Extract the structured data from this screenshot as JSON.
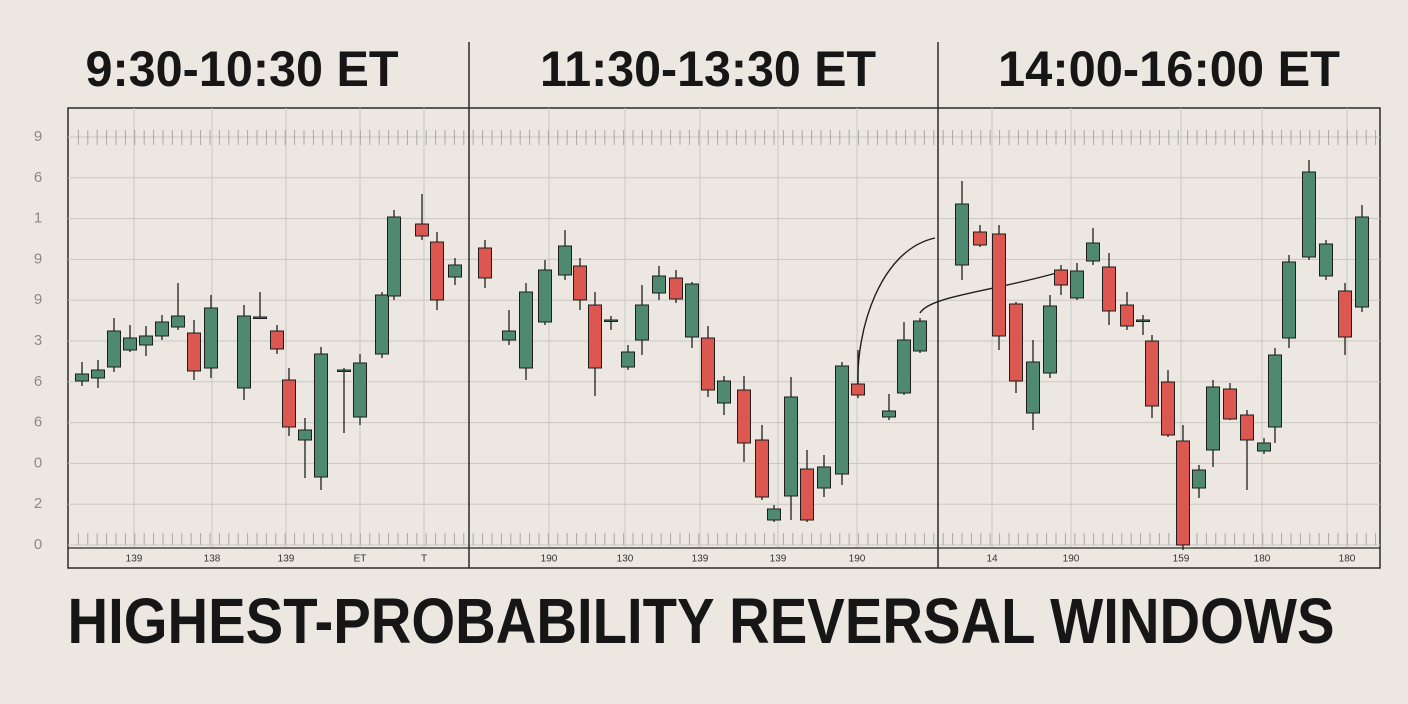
{
  "chart_data": {
    "type": "candlestick",
    "title": "HIGHEST-PROBABILITY REVERSAL WINDOWS",
    "window_labels": [
      "9:30-10:30 ET",
      "11:30-13:30 ET",
      "14:00-16:00 ET"
    ],
    "up_color": "#4f8a70",
    "down_color": "#db574f",
    "grid": true,
    "xlim": [
      0,
      1312
    ],
    "ylim": [
      -3,
      437
    ],
    "yticks": [
      0,
      {
        "value": 40.8,
        "label": "2"
      },
      {
        "value": 81.6,
        "label": "0"
      },
      {
        "value": 122.4,
        "label": "6"
      },
      {
        "value": 163.2,
        "label": "6"
      },
      {
        "value": 204,
        "label": "3"
      },
      {
        "value": 244.8,
        "label": "9"
      },
      {
        "value": 285.6,
        "label": "9"
      },
      {
        "value": 326.4,
        "label": "1"
      },
      {
        "value": 367.2,
        "label": "6"
      },
      {
        "value": 408,
        "label": "9"
      }
    ],
    "xticks": [
      {
        "value": 66,
        "label": "139"
      },
      {
        "value": 144,
        "label": "138"
      },
      {
        "value": 218,
        "label": "139"
      },
      {
        "value": 292,
        "label": "ET"
      },
      {
        "value": 356,
        "label": "T"
      },
      {
        "value": 481,
        "label": "190"
      },
      {
        "value": 557,
        "label": "130"
      },
      {
        "value": 632,
        "label": "139"
      },
      {
        "value": 710,
        "label": "139"
      },
      {
        "value": 789,
        "label": "190"
      },
      {
        "value": 924,
        "label": "14"
      },
      {
        "value": 1003,
        "label": "190"
      },
      {
        "value": 1113,
        "label": "159"
      },
      {
        "value": 1194,
        "label": "180"
      },
      {
        "value": 1279,
        "label": "180"
      }
    ],
    "x": [
      14,
      30,
      46,
      62,
      78,
      94,
      110,
      126,
      143,
      176,
      192,
      209,
      221,
      237,
      253,
      276,
      292,
      314,
      326,
      354,
      369,
      387,
      417,
      441,
      458,
      477,
      497,
      512,
      527,
      543,
      560,
      574,
      591,
      608,
      624,
      640,
      656,
      676,
      694,
      706,
      723,
      739,
      756,
      774,
      790,
      821,
      836,
      852,
      894,
      912,
      931,
      948,
      965,
      982,
      993,
      1009,
      1025,
      1041,
      1059,
      1075,
      1084,
      1100,
      1115,
      1131,
      1145,
      1162,
      1179,
      1196,
      1207,
      1221,
      1241,
      1258,
      1277,
      1294
    ],
    "open": [
      164,
      167,
      178,
      195,
      200,
      209,
      218,
      212,
      177,
      157,
      228,
      214,
      165,
      105,
      68,
      175,
      128,
      191,
      249,
      321,
      303,
      268,
      297,
      205,
      177,
      223,
      270,
      279,
      240,
      225,
      178,
      205,
      252,
      267,
      208,
      207,
      142,
      155,
      105,
      25,
      49,
      76,
      57,
      71,
      161,
      128,
      152,
      194,
      280,
      313,
      311,
      241,
      132,
      172,
      275,
      247,
      284,
      278,
      240,
      225,
      204,
      163,
      104,
      57,
      95,
      156,
      130,
      94,
      118,
      207,
      288,
      269,
      254,
      238
    ],
    "high": [
      183,
      185,
      227,
      220,
      219,
      230,
      262,
      225,
      250,
      240,
      253,
      220,
      177,
      127,
      198,
      177,
      191,
      253,
      335,
      351,
      313,
      287,
      305,
      235,
      262,
      285,
      315,
      287,
      253,
      229,
      200,
      260,
      279,
      275,
      263,
      219,
      169,
      169,
      120,
      40,
      168,
      95,
      90,
      183,
      195,
      151,
      223,
      227,
      364,
      320,
      320,
      243,
      205,
      250,
      280,
      282,
      317,
      292,
      253,
      230,
      210,
      175,
      120,
      80,
      165,
      162,
      135,
      107,
      197,
      290,
      385,
      305,
      262,
      340
    ],
    "low": [
      159,
      157,
      173,
      193,
      189,
      205,
      215,
      165,
      167,
      145,
      227,
      191,
      109,
      67,
      55,
      112,
      120,
      187,
      245,
      305,
      235,
      260,
      257,
      200,
      165,
      220,
      265,
      235,
      149,
      215,
      175,
      190,
      245,
      242,
      197,
      148,
      130,
      83,
      45,
      23,
      25,
      23,
      48,
      60,
      147,
      125,
      150,
      192,
      265,
      298,
      195,
      152,
      115,
      167,
      250,
      245,
      280,
      220,
      215,
      210,
      127,
      108,
      -5,
      47,
      78,
      125,
      55,
      91,
      102,
      197,
      285,
      265,
      190,
      233
    ],
    "close": [
      171,
      175,
      214,
      207,
      209,
      223,
      229,
      174,
      237,
      229,
      228,
      196,
      118,
      115,
      191,
      175,
      182,
      250,
      328,
      309,
      245,
      280,
      267,
      214,
      253,
      275,
      299,
      245,
      177,
      225,
      193,
      240,
      269,
      246,
      261,
      155,
      164,
      102,
      48,
      36,
      148,
      25,
      78,
      179,
      150,
      134,
      205,
      224,
      341,
      300,
      209,
      164,
      183,
      239,
      260,
      274,
      302,
      234,
      219,
      225,
      139,
      110,
      0,
      75,
      158,
      126,
      105,
      102,
      190,
      283,
      373,
      301,
      208,
      328
    ]
  }
}
